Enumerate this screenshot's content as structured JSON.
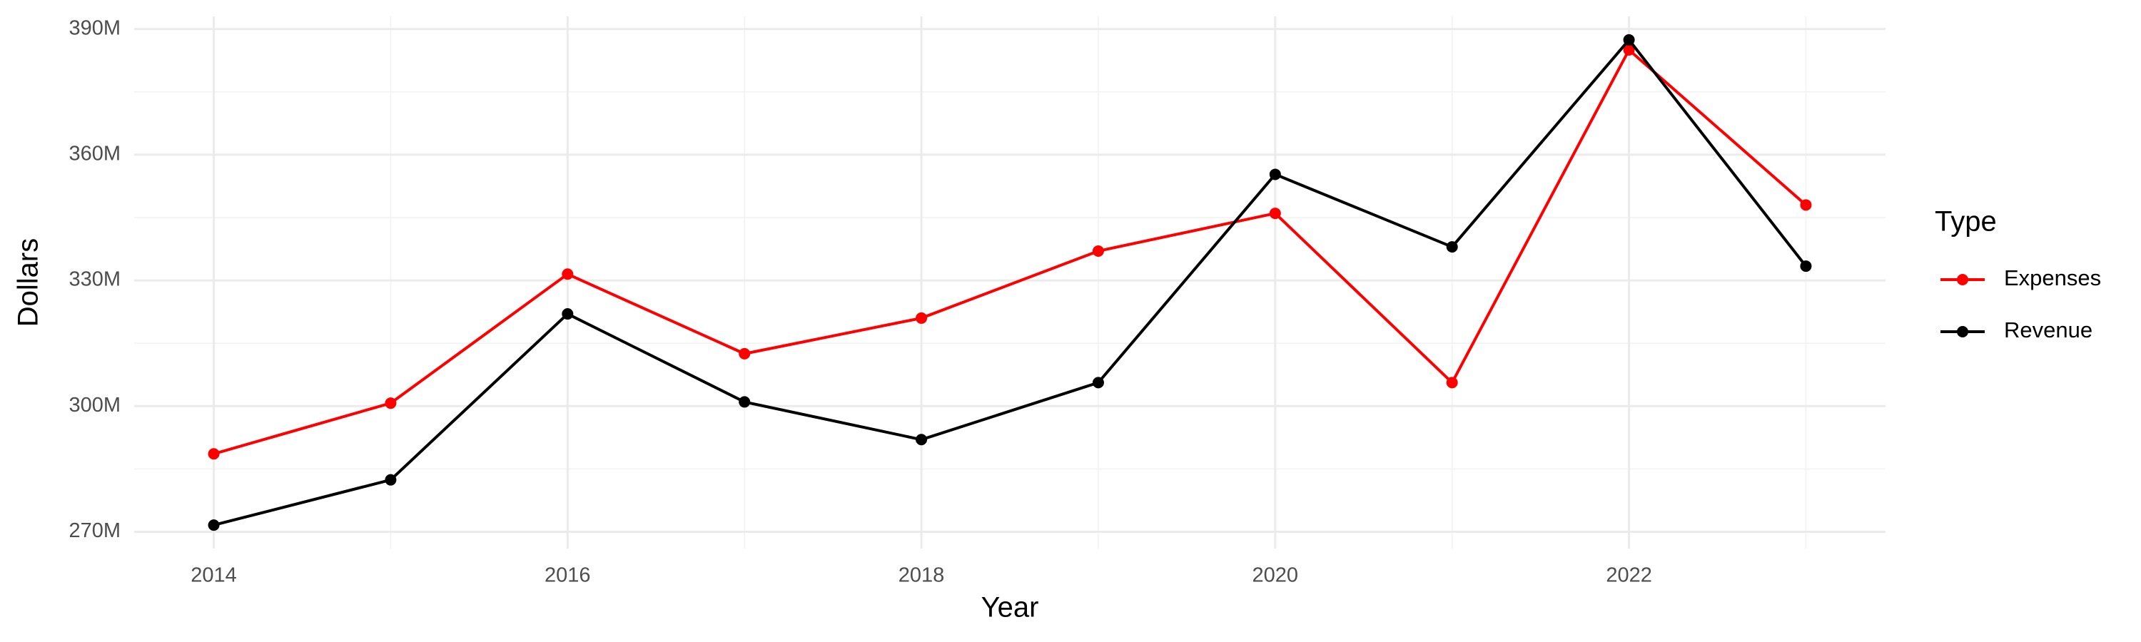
{
  "chart_data": {
    "type": "line",
    "x_label": "Year",
    "y_label": "Dollars",
    "x": [
      2014,
      2015,
      2016,
      2017,
      2018,
      2019,
      2020,
      2021,
      2022,
      2023
    ],
    "series": [
      {
        "name": "Expenses",
        "color": "#ff0000",
        "values": [
          288600000,
          300700000,
          331500000,
          312500000,
          321000000,
          337000000,
          346000000,
          305600000,
          385000000,
          348000000
        ]
      },
      {
        "name": "Revenue",
        "color": "#000000",
        "values": [
          271600000,
          282400000,
          322000000,
          301000000,
          292000000,
          305600000,
          355300000,
          338000000,
          387400000,
          333400000
        ]
      }
    ],
    "xlim": [
      2013.55,
      2023.45
    ],
    "xticks": [
      2014,
      2016,
      2018,
      2020,
      2022
    ],
    "ylim": [
      266000000,
      393000000
    ],
    "yticks": [
      {
        "value": 270000000,
        "label": "270M"
      },
      {
        "value": 300000000,
        "label": "300M"
      },
      {
        "value": 330000000,
        "label": "330M"
      },
      {
        "value": 360000000,
        "label": "360M"
      },
      {
        "value": 390000000,
        "label": "390M"
      }
    ],
    "grid": true,
    "legend_title": "Type",
    "legend_position": "right"
  }
}
